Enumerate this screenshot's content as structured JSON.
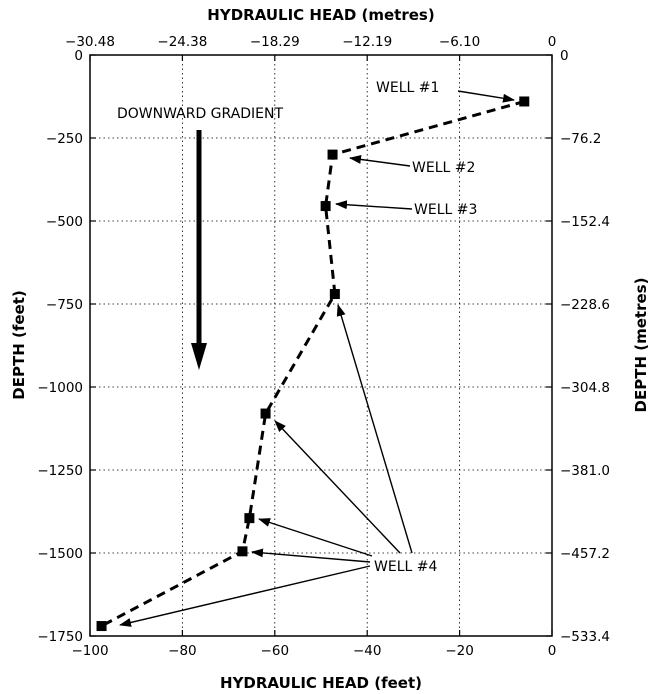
{
  "chart_data": {
    "type": "line",
    "xlabel_bottom": "HYDRAULIC HEAD (feet)",
    "xlabel_top": "HYDRAULIC HEAD (metres)",
    "ylabel_left": "DEPTH (feet)",
    "ylabel_right": "DEPTH (metres)",
    "xlim": [
      -100,
      0
    ],
    "ylim": [
      -1750,
      0
    ],
    "grid": true,
    "x_ticks": [
      -100,
      -80,
      -60,
      -40,
      -20,
      0
    ],
    "x_tick_labels": [
      "−100",
      "−80",
      "−60",
      "−40",
      "−20",
      "0"
    ],
    "y_ticks": [
      0,
      -250,
      -500,
      -750,
      -1000,
      -1250,
      -1500,
      -1750
    ],
    "y_tick_labels": [
      "0",
      "−250",
      "−500",
      "−750",
      "−1000",
      "−1250",
      "−1500",
      "−1750"
    ],
    "top_ticks": [
      -100,
      -80,
      -60,
      -40,
      -20,
      0
    ],
    "top_tick_labels": [
      "−30.48",
      "−24.38",
      "−18.29",
      "−12.19",
      "−6.10",
      "0"
    ],
    "right_ticks": [
      0,
      -250,
      -500,
      -750,
      -1000,
      -1250,
      -1500,
      -1750
    ],
    "right_tick_labels": [
      "0",
      "−76.2",
      "−152.4",
      "−228.6",
      "−304.8",
      "−381.0",
      "−457.2",
      "−533.4"
    ],
    "series": [
      {
        "x": [
          -6,
          -47.5,
          -49,
          -47,
          -62,
          -65.5,
          -67,
          -97.5
        ],
        "y": [
          -140,
          -300,
          -455,
          -720,
          -1080,
          -1395,
          -1495,
          -1720
        ]
      }
    ],
    "annotations": {
      "gradient_label": "DOWNWARD GRADIENT",
      "well1": "WELL #1",
      "well2": "WELL #2",
      "well3": "WELL #3",
      "well4": "WELL #4"
    }
  }
}
